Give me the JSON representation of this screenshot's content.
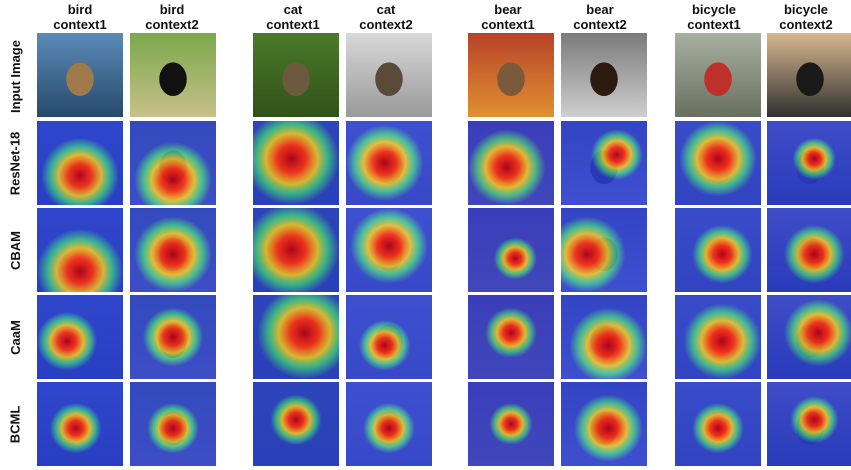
{
  "columns": [
    {
      "class": "bird",
      "context": "context1"
    },
    {
      "class": "bird",
      "context": "context2"
    },
    {
      "class": "cat",
      "context": "context1"
    },
    {
      "class": "cat",
      "context": "context2"
    },
    {
      "class": "bear",
      "context": "context1"
    },
    {
      "class": "bear",
      "context": "context2"
    },
    {
      "class": "bicycle",
      "context": "context1"
    },
    {
      "class": "bicycle",
      "context": "context2"
    }
  ],
  "rows": [
    "Input Image",
    "ResNet-18",
    "CBAM",
    "CaaM",
    "BCML"
  ],
  "photo_colors": {
    "bird-context1": {
      "bg": [
        "#5b8bb8",
        "#274a6b"
      ],
      "subject": "#a07a4a"
    },
    "bird-context2": {
      "bg": [
        "#7aa84a",
        "#c8c08a"
      ],
      "subject": "#111111"
    },
    "cat-context1": {
      "bg": [
        "#4c7a2a",
        "#2f5219"
      ],
      "subject": "#6b5a40"
    },
    "cat-context2": {
      "bg": [
        "#d8d8d8",
        "#9a9a9a"
      ],
      "subject": "#5a4a3a"
    },
    "bear-context1": {
      "bg": [
        "#b8422a",
        "#e09030"
      ],
      "subject": "#7a5a3a"
    },
    "bear-context2": {
      "bg": [
        "#7a7a7a",
        "#cfcfcf"
      ],
      "subject": "#2a1a10"
    },
    "bicycle-context1": {
      "bg": [
        "#a8b0a0",
        "#6a7060"
      ],
      "subject": "#c0302a"
    },
    "bicycle-context2": {
      "bg": [
        "#d8b890",
        "#303030"
      ],
      "subject": "#1a1a1a"
    }
  }
}
